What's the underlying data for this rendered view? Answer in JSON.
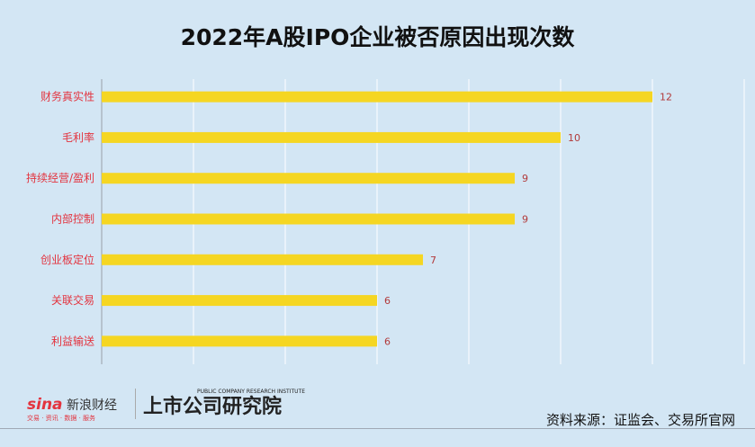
{
  "chart_data": {
    "type": "bar",
    "orientation": "horizontal",
    "title": "2022年A股IPO企业被否原因出现次数",
    "categories": [
      "财务真实性",
      "毛利率",
      "持续经营/盈利",
      "内部控制",
      "创业板定位",
      "关联交易",
      "利益输送"
    ],
    "values": [
      12,
      10,
      9,
      9,
      7,
      6,
      6
    ],
    "xlim": [
      0,
      14
    ],
    "grid": true,
    "bar_color": "#f5d622",
    "label_color": "#e3343f"
  },
  "watermark": {
    "sina": "sina新浪财经",
    "sina_sub": "交易 · 资讯 · 数据 · 服务",
    "institute": "上市公司研究院",
    "institute_en": "PUBLIC COMPANY RESEARCH INSTITUTE"
  },
  "footer": {
    "source": "资料来源：证监会、交易所官网"
  }
}
